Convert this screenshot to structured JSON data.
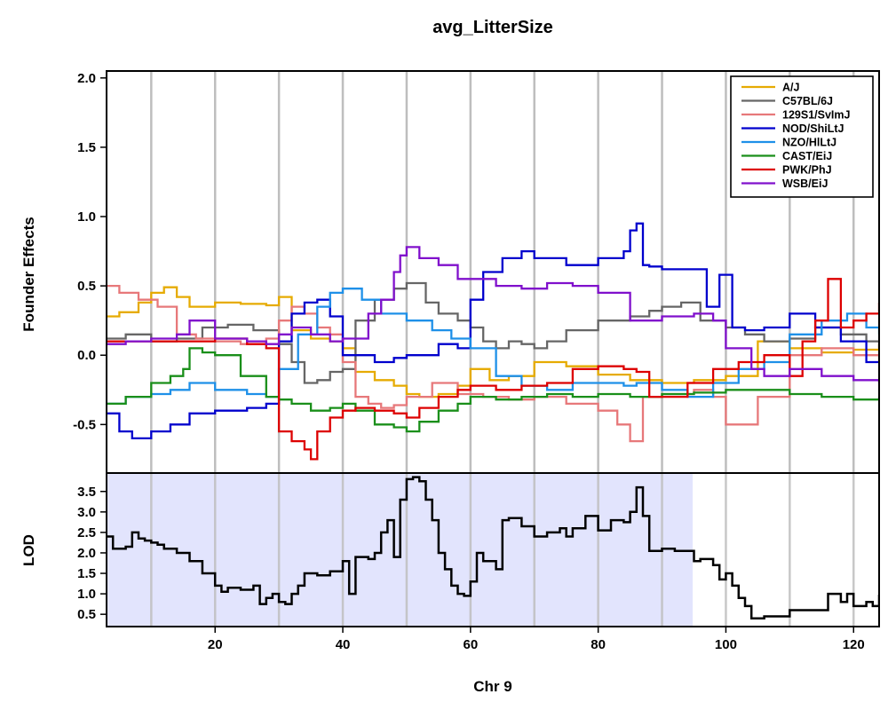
{
  "chart_data": [
    {
      "type": "line",
      "title": "avg_LitterSize",
      "ylabel": "Founder Effects",
      "xlim": [
        3,
        124
      ],
      "ylim": [
        -0.85,
        2.05
      ],
      "yticks": [
        "-0.5",
        "0.0",
        "0.5",
        "1.0",
        "1.5",
        "2.0"
      ],
      "ytick_values": [
        -0.5,
        0,
        0.5,
        1,
        1.5,
        2
      ],
      "vgrid": [
        10,
        20,
        30,
        40,
        50,
        60,
        70,
        80,
        90,
        100,
        110,
        120
      ],
      "legend_position": "top-right",
      "series": [
        {
          "name": "A/J",
          "color": "#E6AB02",
          "x": [
            3,
            5,
            8,
            10,
            12,
            14,
            16,
            20,
            24,
            28,
            30,
            32,
            35,
            38,
            40,
            42,
            45,
            48,
            50,
            52,
            55,
            58,
            60,
            63,
            66,
            70,
            75,
            80,
            85,
            90,
            95,
            100,
            105,
            110,
            115,
            120,
            124
          ],
          "y": [
            0.28,
            0.31,
            0.38,
            0.45,
            0.49,
            0.42,
            0.35,
            0.38,
            0.37,
            0.36,
            0.42,
            0.18,
            0.12,
            0.1,
            0.05,
            -0.12,
            -0.18,
            -0.22,
            -0.28,
            -0.3,
            -0.28,
            -0.22,
            -0.1,
            -0.18,
            -0.15,
            -0.05,
            -0.08,
            -0.14,
            -0.18,
            -0.2,
            -0.18,
            -0.15,
            0.1,
            0.05,
            0.02,
            0.04,
            0.08
          ]
        },
        {
          "name": "C57BL/6J",
          "color": "#666666",
          "x": [
            3,
            6,
            10,
            14,
            18,
            22,
            26,
            30,
            32,
            34,
            36,
            38,
            40,
            42,
            45,
            48,
            50,
            53,
            55,
            58,
            60,
            62,
            64,
            66,
            68,
            70,
            72,
            75,
            80,
            85,
            88,
            90,
            93,
            96,
            100,
            103,
            106,
            110,
            114,
            118,
            122,
            124
          ],
          "y": [
            0.12,
            0.15,
            0.1,
            0.12,
            0.2,
            0.22,
            0.18,
            0.08,
            -0.05,
            -0.2,
            -0.18,
            -0.12,
            -0.1,
            0.25,
            0.4,
            0.48,
            0.52,
            0.38,
            0.3,
            0.25,
            0.2,
            0.1,
            0.05,
            0.1,
            0.08,
            0.05,
            0.1,
            0.18,
            0.25,
            0.28,
            0.32,
            0.35,
            0.38,
            0.25,
            0.2,
            0.15,
            0.1,
            0.12,
            0.2,
            0.15,
            0.1,
            0.05
          ]
        },
        {
          "name": "129S1/SvImJ",
          "color": "#E7787A",
          "x": [
            3,
            5,
            8,
            11,
            14,
            17,
            20,
            24,
            28,
            30,
            32,
            34,
            36,
            38,
            40,
            42,
            44,
            46,
            48,
            50,
            54,
            58,
            62,
            66,
            70,
            75,
            80,
            83,
            85,
            87,
            90,
            95,
            98,
            100,
            105,
            110,
            115,
            120,
            124
          ],
          "y": [
            0.5,
            0.45,
            0.4,
            0.35,
            0.15,
            0.12,
            0.1,
            0.08,
            0.12,
            0.25,
            0.35,
            0.3,
            0.2,
            0.15,
            -0.05,
            -0.3,
            -0.35,
            -0.38,
            -0.36,
            -0.3,
            -0.2,
            -0.28,
            -0.3,
            -0.32,
            -0.3,
            -0.35,
            -0.4,
            -0.5,
            -0.62,
            -0.3,
            -0.28,
            -0.25,
            -0.3,
            -0.5,
            -0.3,
            0.0,
            0.05,
            0.0,
            -0.05
          ]
        },
        {
          "name": "NOD/ShiLtJ",
          "color": "#0000CD",
          "x": [
            3,
            5,
            7,
            10,
            13,
            16,
            20,
            25,
            28,
            30,
            32,
            34,
            36,
            38,
            40,
            45,
            48,
            50,
            55,
            58,
            60,
            62,
            65,
            68,
            70,
            75,
            80,
            84,
            85,
            86,
            87,
            88,
            90,
            94,
            97,
            99,
            101,
            103,
            106,
            110,
            114,
            118,
            122,
            124
          ],
          "y": [
            -0.42,
            -0.55,
            -0.6,
            -0.55,
            -0.5,
            -0.42,
            -0.4,
            -0.38,
            -0.35,
            0.1,
            0.3,
            0.38,
            0.4,
            0.28,
            0.0,
            -0.05,
            -0.02,
            0.0,
            0.08,
            0.05,
            0.4,
            0.6,
            0.7,
            0.75,
            0.7,
            0.65,
            0.7,
            0.75,
            0.9,
            0.95,
            0.65,
            0.64,
            0.62,
            0.62,
            0.35,
            0.58,
            0.2,
            0.18,
            0.2,
            0.3,
            0.2,
            0.1,
            -0.05,
            -0.05
          ]
        },
        {
          "name": "NZO/HlLtJ",
          "color": "#1E90E8",
          "x": [
            3,
            6,
            10,
            13,
            16,
            20,
            25,
            28,
            30,
            33,
            36,
            38,
            40,
            43,
            46,
            50,
            54,
            57,
            60,
            64,
            68,
            72,
            76,
            80,
            84,
            86,
            90,
            94,
            98,
            102,
            106,
            110,
            115,
            119,
            122,
            124
          ],
          "y": [
            -0.35,
            -0.3,
            -0.28,
            -0.25,
            -0.2,
            -0.25,
            -0.28,
            -0.3,
            -0.1,
            0.15,
            0.35,
            0.45,
            0.48,
            0.4,
            0.3,
            0.25,
            0.18,
            0.12,
            0.05,
            -0.15,
            -0.22,
            -0.25,
            -0.2,
            -0.2,
            -0.22,
            -0.2,
            -0.25,
            -0.3,
            -0.2,
            -0.1,
            -0.05,
            0.15,
            0.25,
            0.3,
            0.2,
            0.15
          ]
        },
        {
          "name": "CAST/EiJ",
          "color": "#1A8F1A",
          "x": [
            3,
            6,
            10,
            13,
            15,
            16,
            18,
            20,
            24,
            28,
            30,
            32,
            35,
            38,
            40,
            42,
            45,
            48,
            50,
            52,
            55,
            58,
            60,
            64,
            68,
            72,
            76,
            80,
            85,
            90,
            95,
            100,
            105,
            110,
            115,
            120,
            124
          ],
          "y": [
            -0.35,
            -0.3,
            -0.2,
            -0.15,
            -0.1,
            0.05,
            0.02,
            0.0,
            -0.15,
            -0.3,
            -0.32,
            -0.35,
            -0.4,
            -0.38,
            -0.35,
            -0.4,
            -0.5,
            -0.52,
            -0.55,
            -0.48,
            -0.4,
            -0.35,
            -0.3,
            -0.32,
            -0.3,
            -0.28,
            -0.3,
            -0.28,
            -0.3,
            -0.28,
            -0.27,
            -0.25,
            -0.25,
            -0.28,
            -0.3,
            -0.32,
            -0.3
          ]
        },
        {
          "name": "PWK/PhJ",
          "color": "#DD0000",
          "x": [
            3,
            8,
            12,
            16,
            20,
            25,
            28,
            30,
            32,
            34,
            35,
            36,
            38,
            40,
            42,
            45,
            48,
            50,
            52,
            55,
            58,
            60,
            64,
            68,
            72,
            76,
            80,
            84,
            86,
            88,
            90,
            94,
            98,
            102,
            106,
            110,
            112,
            114,
            116,
            118,
            120,
            122,
            124
          ],
          "y": [
            0.1,
            0.1,
            0.1,
            0.1,
            0.12,
            0.08,
            0.05,
            -0.55,
            -0.62,
            -0.68,
            -0.75,
            -0.55,
            -0.45,
            -0.4,
            -0.38,
            -0.4,
            -0.42,
            -0.45,
            -0.38,
            -0.3,
            -0.25,
            -0.22,
            -0.25,
            -0.22,
            -0.2,
            -0.1,
            -0.08,
            -0.1,
            -0.12,
            -0.3,
            -0.3,
            -0.2,
            -0.1,
            -0.05,
            0.0,
            -0.15,
            0.1,
            0.25,
            0.55,
            0.2,
            0.25,
            0.3,
            0.38
          ]
        },
        {
          "name": "WSB/EiJ",
          "color": "#8010CC",
          "x": [
            3,
            6,
            10,
            14,
            16,
            20,
            25,
            28,
            30,
            32,
            35,
            38,
            40,
            44,
            46,
            48,
            49,
            50,
            52,
            55,
            58,
            60,
            64,
            68,
            72,
            76,
            80,
            85,
            90,
            95,
            98,
            100,
            104,
            106,
            110,
            115,
            120,
            124
          ],
          "y": [
            0.08,
            0.1,
            0.12,
            0.15,
            0.25,
            0.12,
            0.1,
            0.08,
            0.15,
            0.2,
            0.15,
            0.1,
            0.12,
            0.3,
            0.4,
            0.6,
            0.72,
            0.78,
            0.7,
            0.65,
            0.55,
            0.55,
            0.5,
            0.48,
            0.52,
            0.5,
            0.45,
            0.25,
            0.28,
            0.3,
            0.25,
            0.05,
            -0.1,
            -0.15,
            -0.1,
            -0.15,
            -0.18,
            -0.2
          ]
        }
      ]
    },
    {
      "type": "line",
      "xlabel": "Chr 9",
      "ylabel": "LOD",
      "xlim": [
        3,
        124
      ],
      "ylim": [
        0.2,
        3.95
      ],
      "xticks": [
        "20",
        "40",
        "60",
        "80",
        "100",
        "120"
      ],
      "xtick_values": [
        20,
        40,
        60,
        80,
        100,
        120
      ],
      "yticks": [
        "0.5",
        "1.0",
        "1.5",
        "2.0",
        "2.5",
        "3.0",
        "3.5"
      ],
      "ytick_values": [
        0.5,
        1,
        1.5,
        2,
        2.5,
        3,
        3.5
      ],
      "vgrid": [
        10,
        20,
        30,
        40,
        50,
        60,
        70,
        80,
        90,
        100,
        110,
        120
      ],
      "highlight_region": [
        3,
        94.8
      ],
      "highlight_color": "#E2E4FD",
      "series": [
        {
          "name": "",
          "color": "#000000",
          "x": [
            3,
            4,
            5,
            6,
            7,
            8,
            9,
            10,
            11,
            12,
            14,
            16,
            18,
            20,
            21,
            22,
            24,
            26,
            27,
            28,
            29,
            30,
            31,
            32,
            33,
            34,
            36,
            38,
            40,
            41,
            42,
            43,
            44,
            45,
            46,
            47,
            48,
            49,
            50,
            51,
            52,
            53,
            54,
            55,
            56,
            57,
            58,
            59,
            60,
            61,
            62,
            64,
            65,
            66,
            68,
            70,
            72,
            74,
            75,
            76,
            78,
            80,
            82,
            84,
            85,
            86,
            87,
            88,
            90,
            92,
            94,
            95,
            96,
            98,
            99,
            100,
            101,
            102,
            103,
            104,
            106,
            108,
            110,
            112,
            114,
            116,
            118,
            119,
            120,
            122,
            123,
            124
          ],
          "y": [
            2.4,
            2.1,
            2.1,
            2.15,
            2.5,
            2.35,
            2.3,
            2.25,
            2.2,
            2.1,
            2.0,
            1.8,
            1.5,
            1.2,
            1.05,
            1.15,
            1.1,
            1.2,
            0.75,
            0.9,
            1.0,
            0.8,
            0.75,
            1.0,
            1.2,
            1.5,
            1.45,
            1.55,
            1.8,
            1.0,
            1.9,
            1.9,
            1.85,
            2.0,
            2.5,
            2.8,
            1.9,
            3.3,
            3.8,
            3.85,
            3.75,
            3.3,
            2.8,
            2.0,
            1.6,
            1.2,
            1.0,
            0.95,
            1.3,
            2.0,
            1.8,
            1.6,
            2.8,
            2.85,
            2.65,
            2.4,
            2.5,
            2.6,
            2.4,
            2.6,
            2.9,
            2.55,
            2.8,
            2.75,
            3.0,
            3.6,
            2.9,
            2.05,
            2.1,
            2.05,
            2.05,
            1.8,
            1.85,
            1.7,
            1.35,
            1.5,
            1.2,
            0.9,
            0.7,
            0.4,
            0.45,
            0.45,
            0.6,
            0.6,
            0.6,
            1.0,
            0.8,
            1.0,
            0.7,
            0.8,
            0.7,
            0.98
          ]
        }
      ]
    }
  ]
}
